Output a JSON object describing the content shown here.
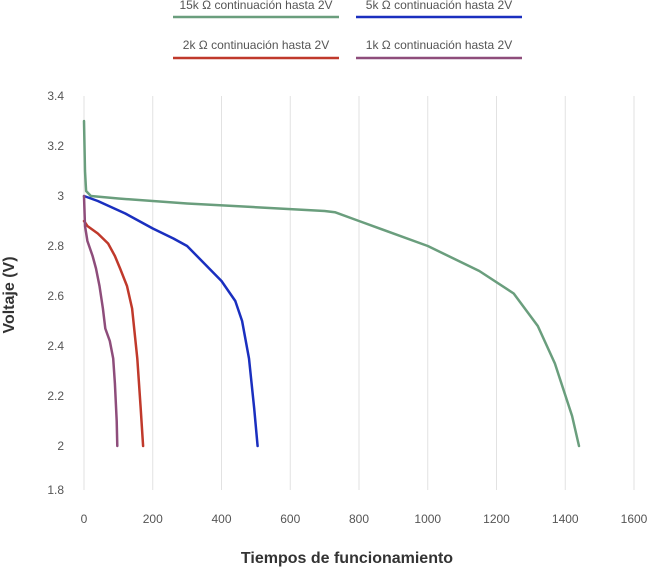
{
  "chart_data": {
    "type": "line",
    "title": "",
    "xlabel": "Tiempos de funcionamiento",
    "ylabel": "Voltaje (V)",
    "xlim": [
      0,
      1600
    ],
    "ylim": [
      1.8,
      3.4
    ],
    "xticks": [
      "0",
      "200",
      "400",
      "600",
      "800",
      "1000",
      "1200",
      "1400",
      "1600"
    ],
    "yticks": [
      "1.8",
      "2",
      "2.2",
      "2.4",
      "2.6",
      "2.8",
      "3",
      "3.2",
      "3.4"
    ],
    "grid": "vertical",
    "legend_position": "top",
    "series": [
      {
        "name": "15k Ω continuación hasta 2V",
        "color": "#6a9e7d",
        "points": [
          [
            0,
            3.3
          ],
          [
            3,
            3.1
          ],
          [
            6,
            3.02
          ],
          [
            20,
            3.0
          ],
          [
            100,
            2.99
          ],
          [
            300,
            2.97
          ],
          [
            500,
            2.955
          ],
          [
            700,
            2.94
          ],
          [
            730,
            2.935
          ],
          [
            800,
            2.9
          ],
          [
            1000,
            2.8
          ],
          [
            1150,
            2.7
          ],
          [
            1250,
            2.61
          ],
          [
            1320,
            2.48
          ],
          [
            1370,
            2.33
          ],
          [
            1420,
            2.12
          ],
          [
            1440,
            2.0
          ]
        ]
      },
      {
        "name": "5k Ω continuación hasta 2V",
        "color": "#1a2fbf",
        "points": [
          [
            0,
            3.0
          ],
          [
            40,
            2.98
          ],
          [
            120,
            2.93
          ],
          [
            200,
            2.87
          ],
          [
            260,
            2.83
          ],
          [
            300,
            2.8
          ],
          [
            350,
            2.73
          ],
          [
            400,
            2.66
          ],
          [
            440,
            2.58
          ],
          [
            460,
            2.5
          ],
          [
            480,
            2.35
          ],
          [
            495,
            2.15
          ],
          [
            505,
            2.0
          ]
        ]
      },
      {
        "name": "2k Ω continuación hasta 2V",
        "color": "#c0392b",
        "points": [
          [
            0,
            2.9
          ],
          [
            10,
            2.88
          ],
          [
            40,
            2.85
          ],
          [
            70,
            2.81
          ],
          [
            90,
            2.76
          ],
          [
            105,
            2.71
          ],
          [
            125,
            2.64
          ],
          [
            140,
            2.55
          ],
          [
            155,
            2.35
          ],
          [
            165,
            2.15
          ],
          [
            172,
            2.0
          ]
        ]
      },
      {
        "name": "1k Ω continuación hasta 2V",
        "color": "#8e4d7b",
        "points": [
          [
            0,
            3.0
          ],
          [
            3,
            2.88
          ],
          [
            10,
            2.82
          ],
          [
            25,
            2.76
          ],
          [
            35,
            2.71
          ],
          [
            45,
            2.64
          ],
          [
            55,
            2.55
          ],
          [
            62,
            2.47
          ],
          [
            75,
            2.42
          ],
          [
            85,
            2.35
          ],
          [
            90,
            2.25
          ],
          [
            95,
            2.1
          ],
          [
            97,
            2.0
          ]
        ]
      }
    ]
  }
}
